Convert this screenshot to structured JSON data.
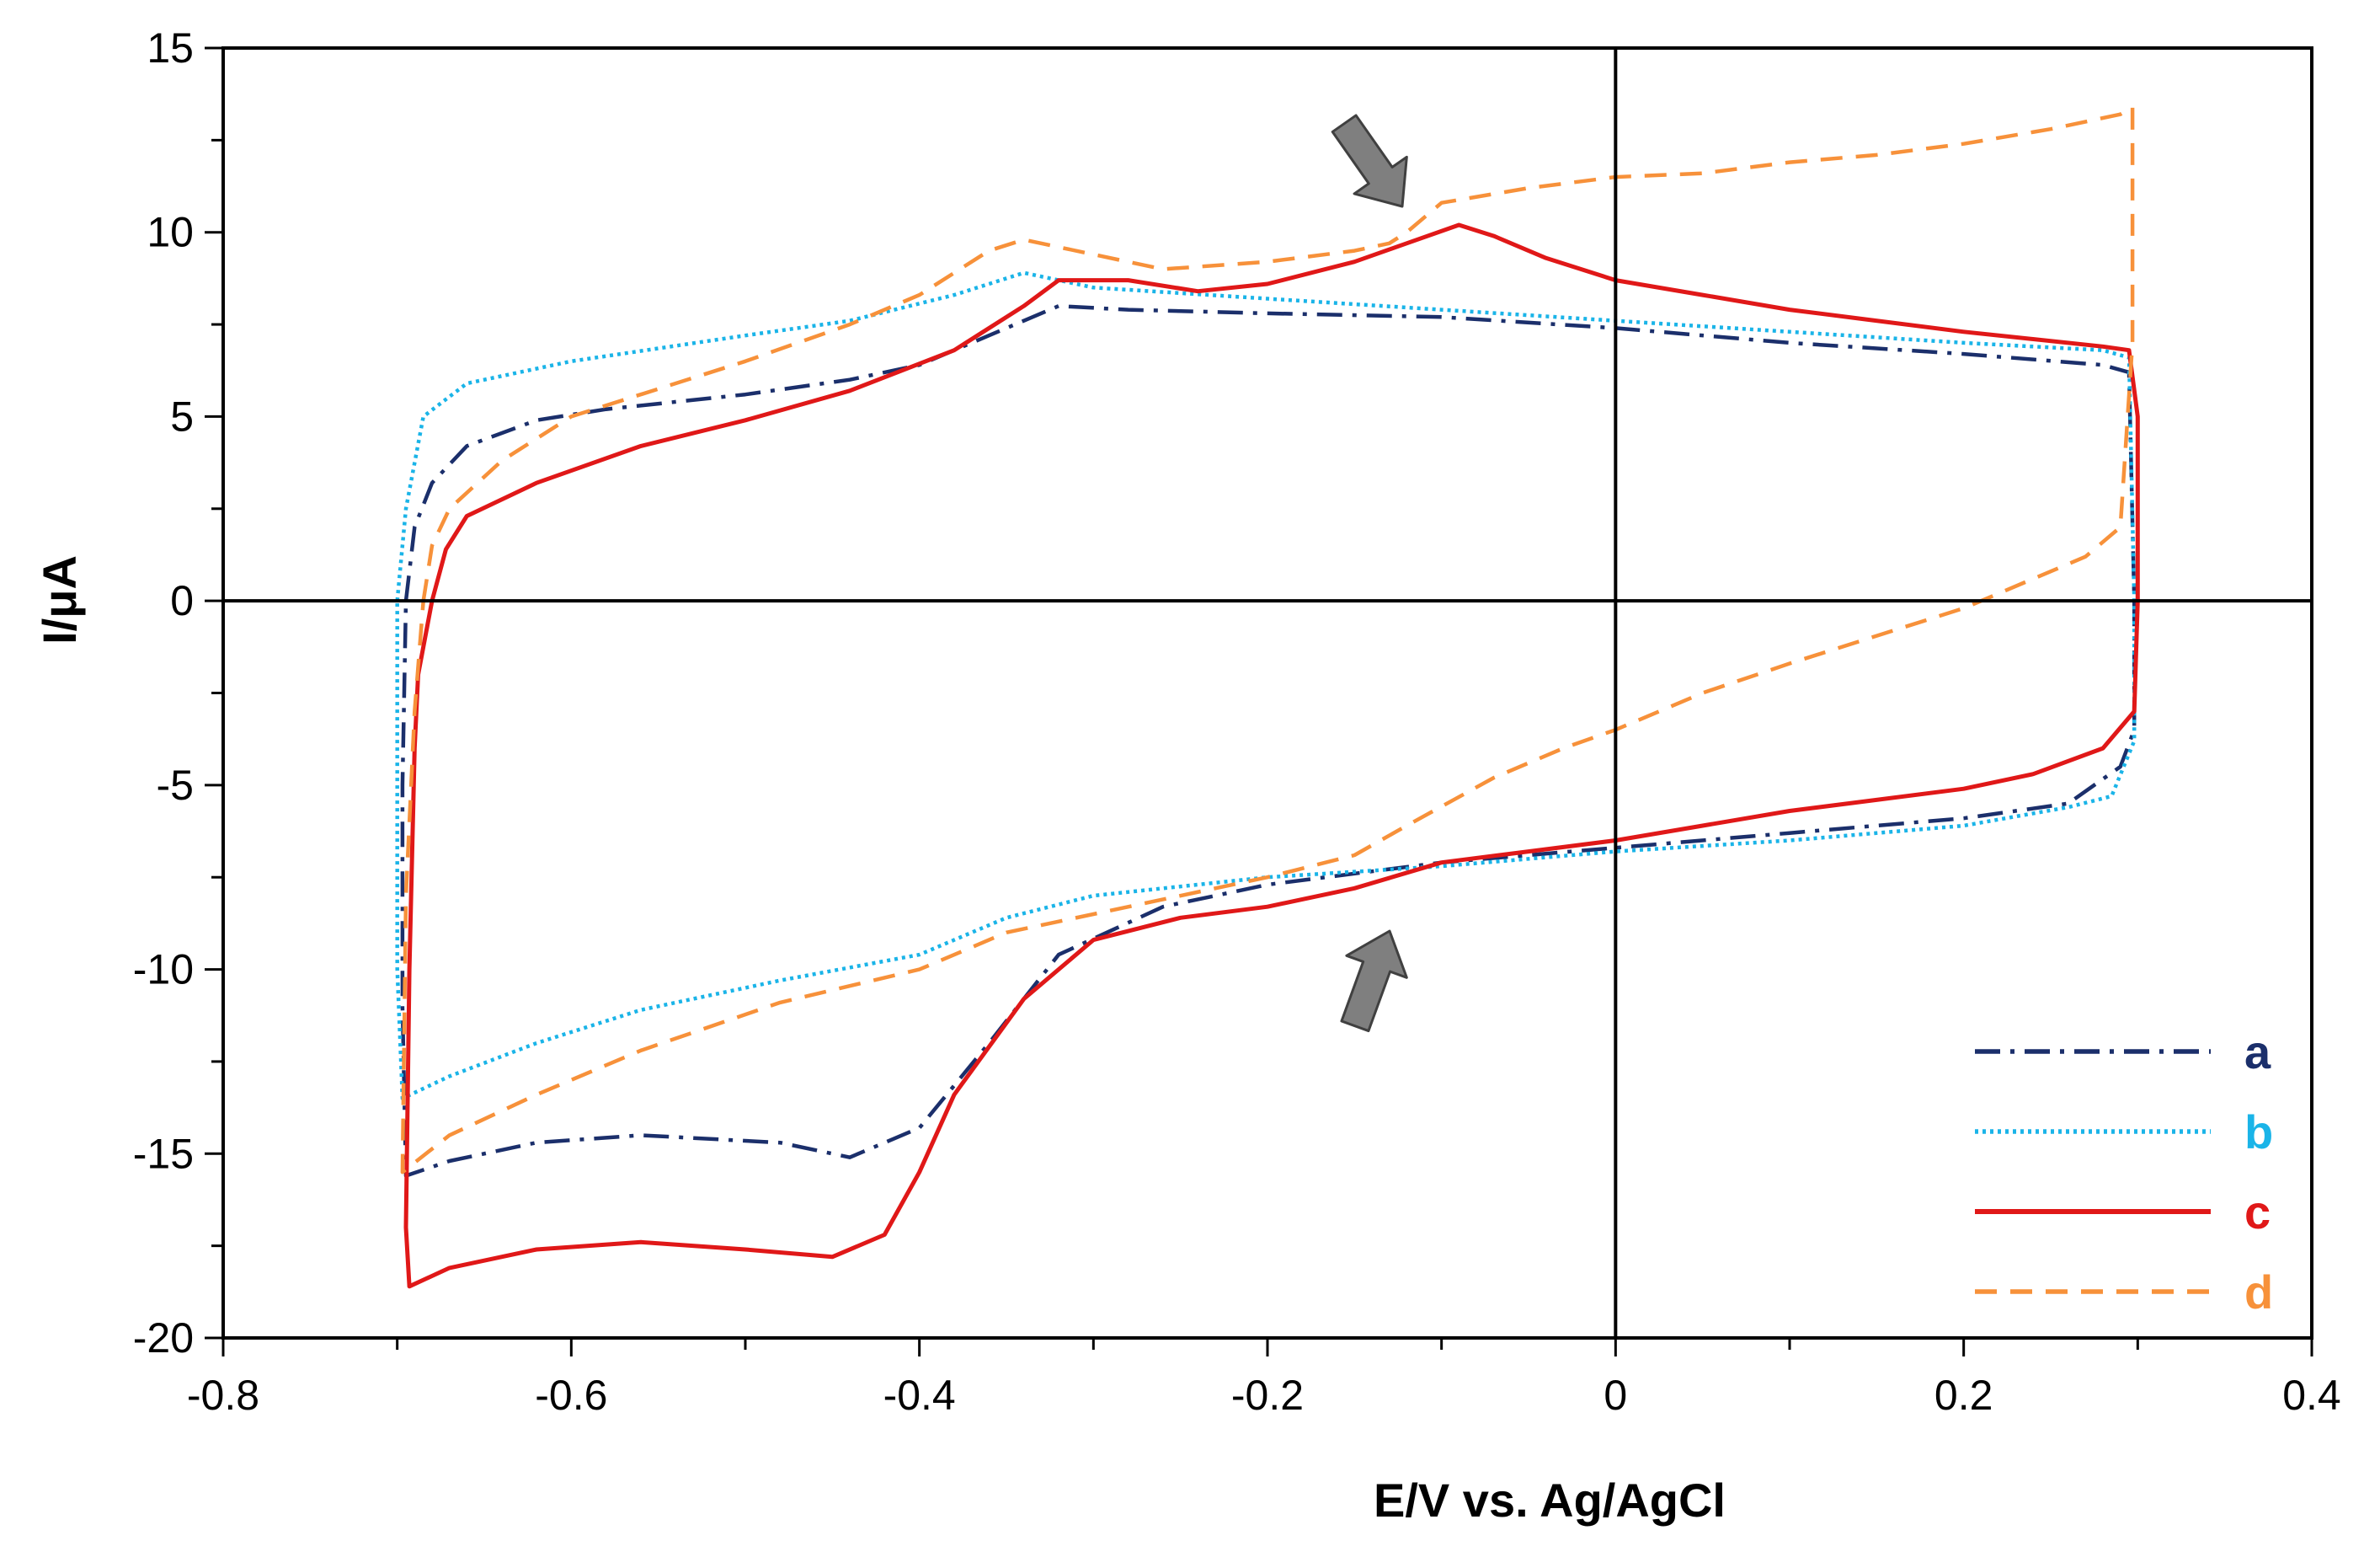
{
  "chart_data": {
    "type": "line",
    "title": "",
    "xlabel": "E/V vs. Ag/AgCl",
    "ylabel": "I/μA",
    "xlim": [
      -0.8,
      0.4
    ],
    "ylim": [
      -20,
      15
    ],
    "x_ticks": [
      -0.8,
      -0.6,
      -0.4,
      -0.2,
      0,
      0.2,
      0.4
    ],
    "x_tick_labels": [
      "-0.8",
      "-0.6",
      "-0.4",
      "-0.2",
      "0",
      "0.2",
      "0.4"
    ],
    "y_ticks": [
      -20,
      -15,
      -10,
      -5,
      0,
      5,
      10,
      15
    ],
    "y_tick_labels": [
      "-20",
      "-15",
      "-10",
      "-5",
      "0",
      "5",
      "10",
      "15"
    ],
    "grid": false,
    "legend_position": "bottom-right",
    "annotations": [
      {
        "type": "arrow",
        "direction": "down-right",
        "x": -0.14,
        "y": 11.8,
        "note": "points to anodic peak"
      },
      {
        "type": "arrow",
        "direction": "up-right",
        "x": -0.155,
        "y": -10.5,
        "note": "points to cathodic region"
      }
    ],
    "series": [
      {
        "name": "a",
        "color": "#1b2f6b",
        "style": "dashdot",
        "points": [
          [
            -0.695,
            0
          ],
          [
            -0.69,
            2
          ],
          [
            -0.68,
            3.2
          ],
          [
            -0.66,
            4.2
          ],
          [
            -0.62,
            4.9
          ],
          [
            -0.58,
            5.2
          ],
          [
            -0.5,
            5.6
          ],
          [
            -0.44,
            6.0
          ],
          [
            -0.4,
            6.4
          ],
          [
            -0.36,
            7.2
          ],
          [
            -0.32,
            8.0
          ],
          [
            -0.28,
            7.9
          ],
          [
            -0.2,
            7.8
          ],
          [
            -0.1,
            7.7
          ],
          [
            0.0,
            7.4
          ],
          [
            0.1,
            7.0
          ],
          [
            0.2,
            6.7
          ],
          [
            0.28,
            6.4
          ],
          [
            0.295,
            6.2
          ],
          [
            0.298,
            0
          ],
          [
            0.298,
            -3.5
          ],
          [
            0.29,
            -4.5
          ],
          [
            0.26,
            -5.5
          ],
          [
            0.2,
            -5.9
          ],
          [
            0.1,
            -6.3
          ],
          [
            0.0,
            -6.7
          ],
          [
            -0.1,
            -7.1
          ],
          [
            -0.2,
            -7.7
          ],
          [
            -0.26,
            -8.3
          ],
          [
            -0.32,
            -9.6
          ],
          [
            -0.36,
            -12.0
          ],
          [
            -0.4,
            -14.3
          ],
          [
            -0.44,
            -15.1
          ],
          [
            -0.48,
            -14.7
          ],
          [
            -0.56,
            -14.5
          ],
          [
            -0.62,
            -14.7
          ],
          [
            -0.67,
            -15.2
          ],
          [
            -0.695,
            -15.6
          ],
          [
            -0.697,
            -11
          ],
          [
            -0.697,
            -5
          ],
          [
            -0.695,
            0
          ]
        ]
      },
      {
        "name": "b",
        "color": "#1ab4e8",
        "style": "dotted",
        "points": [
          [
            -0.7,
            0
          ],
          [
            -0.695,
            2.5
          ],
          [
            -0.685,
            5.0
          ],
          [
            -0.66,
            5.9
          ],
          [
            -0.6,
            6.5
          ],
          [
            -0.5,
            7.2
          ],
          [
            -0.44,
            7.6
          ],
          [
            -0.38,
            8.3
          ],
          [
            -0.34,
            8.9
          ],
          [
            -0.3,
            8.5
          ],
          [
            -0.2,
            8.2
          ],
          [
            -0.1,
            7.9
          ],
          [
            0.0,
            7.6
          ],
          [
            0.1,
            7.3
          ],
          [
            0.2,
            7.0
          ],
          [
            0.28,
            6.8
          ],
          [
            0.295,
            6.6
          ],
          [
            0.298,
            0
          ],
          [
            0.298,
            -3.8
          ],
          [
            0.285,
            -5.3
          ],
          [
            0.26,
            -5.6
          ],
          [
            0.2,
            -6.1
          ],
          [
            0.1,
            -6.5
          ],
          [
            0.0,
            -6.8
          ],
          [
            -0.1,
            -7.2
          ],
          [
            -0.2,
            -7.5
          ],
          [
            -0.3,
            -8.0
          ],
          [
            -0.35,
            -8.6
          ],
          [
            -0.4,
            -9.6
          ],
          [
            -0.48,
            -10.3
          ],
          [
            -0.56,
            -11.1
          ],
          [
            -0.62,
            -12.0
          ],
          [
            -0.67,
            -12.9
          ],
          [
            -0.697,
            -13.5
          ],
          [
            -0.7,
            -10
          ],
          [
            -0.7,
            -5
          ],
          [
            -0.7,
            0
          ]
        ]
      },
      {
        "name": "c",
        "color": "#e01818",
        "style": "solid",
        "points": [
          [
            -0.68,
            0
          ],
          [
            -0.672,
            1.4
          ],
          [
            -0.66,
            2.3
          ],
          [
            -0.62,
            3.2
          ],
          [
            -0.56,
            4.2
          ],
          [
            -0.5,
            4.9
          ],
          [
            -0.44,
            5.7
          ],
          [
            -0.38,
            6.8
          ],
          [
            -0.34,
            8.0
          ],
          [
            -0.32,
            8.7
          ],
          [
            -0.28,
            8.7
          ],
          [
            -0.24,
            8.4
          ],
          [
            -0.2,
            8.6
          ],
          [
            -0.15,
            9.2
          ],
          [
            -0.12,
            9.7
          ],
          [
            -0.09,
            10.2
          ],
          [
            -0.07,
            9.9
          ],
          [
            -0.04,
            9.3
          ],
          [
            0.0,
            8.7
          ],
          [
            0.05,
            8.3
          ],
          [
            0.1,
            7.9
          ],
          [
            0.2,
            7.3
          ],
          [
            0.28,
            6.9
          ],
          [
            0.295,
            6.8
          ],
          [
            0.3,
            5.0
          ],
          [
            0.3,
            0
          ],
          [
            0.298,
            -3.0
          ],
          [
            0.28,
            -4.0
          ],
          [
            0.24,
            -4.7
          ],
          [
            0.2,
            -5.1
          ],
          [
            0.1,
            -5.7
          ],
          [
            0.05,
            -6.1
          ],
          [
            0.0,
            -6.5
          ],
          [
            -0.05,
            -6.8
          ],
          [
            -0.1,
            -7.1
          ],
          [
            -0.15,
            -7.8
          ],
          [
            -0.2,
            -8.3
          ],
          [
            -0.25,
            -8.6
          ],
          [
            -0.3,
            -9.2
          ],
          [
            -0.34,
            -10.8
          ],
          [
            -0.38,
            -13.4
          ],
          [
            -0.4,
            -15.5
          ],
          [
            -0.42,
            -17.2
          ],
          [
            -0.45,
            -17.8
          ],
          [
            -0.5,
            -17.6
          ],
          [
            -0.56,
            -17.4
          ],
          [
            -0.62,
            -17.6
          ],
          [
            -0.67,
            -18.1
          ],
          [
            -0.693,
            -18.6
          ],
          [
            -0.695,
            -17.0
          ],
          [
            -0.693,
            -10
          ],
          [
            -0.69,
            -4
          ],
          [
            -0.688,
            -2
          ],
          [
            -0.68,
            0
          ]
        ]
      },
      {
        "name": "d",
        "color": "#f7913a",
        "style": "dashed",
        "points": [
          [
            -0.685,
            0
          ],
          [
            -0.68,
            1.5
          ],
          [
            -0.67,
            2.5
          ],
          [
            -0.64,
            3.8
          ],
          [
            -0.6,
            5.0
          ],
          [
            -0.5,
            6.5
          ],
          [
            -0.44,
            7.5
          ],
          [
            -0.4,
            8.3
          ],
          [
            -0.36,
            9.5
          ],
          [
            -0.34,
            9.8
          ],
          [
            -0.3,
            9.4
          ],
          [
            -0.26,
            9.0
          ],
          [
            -0.2,
            9.2
          ],
          [
            -0.15,
            9.5
          ],
          [
            -0.13,
            9.7
          ],
          [
            -0.12,
            10.0
          ],
          [
            -0.1,
            10.8
          ],
          [
            -0.05,
            11.2
          ],
          [
            0.0,
            11.5
          ],
          [
            0.05,
            11.6
          ],
          [
            0.1,
            11.9
          ],
          [
            0.15,
            12.1
          ],
          [
            0.2,
            12.4
          ],
          [
            0.25,
            12.8
          ],
          [
            0.29,
            13.2
          ],
          [
            0.297,
            13.4
          ],
          [
            0.297,
            7.0
          ],
          [
            0.29,
            2.0
          ],
          [
            0.27,
            1.2
          ],
          [
            0.24,
            0.6
          ],
          [
            0.2,
            -0.2
          ],
          [
            0.1,
            -1.7
          ],
          [
            0.05,
            -2.5
          ],
          [
            0.0,
            -3.5
          ],
          [
            -0.03,
            -4.0
          ],
          [
            -0.07,
            -4.8
          ],
          [
            -0.12,
            -6.1
          ],
          [
            -0.15,
            -6.9
          ],
          [
            -0.2,
            -7.5
          ],
          [
            -0.3,
            -8.5
          ],
          [
            -0.35,
            -9.0
          ],
          [
            -0.4,
            -10.0
          ],
          [
            -0.48,
            -10.9
          ],
          [
            -0.56,
            -12.2
          ],
          [
            -0.62,
            -13.4
          ],
          [
            -0.67,
            -14.5
          ],
          [
            -0.697,
            -15.5
          ],
          [
            -0.695,
            -8
          ],
          [
            -0.69,
            -3
          ],
          [
            -0.685,
            0
          ]
        ]
      }
    ]
  }
}
